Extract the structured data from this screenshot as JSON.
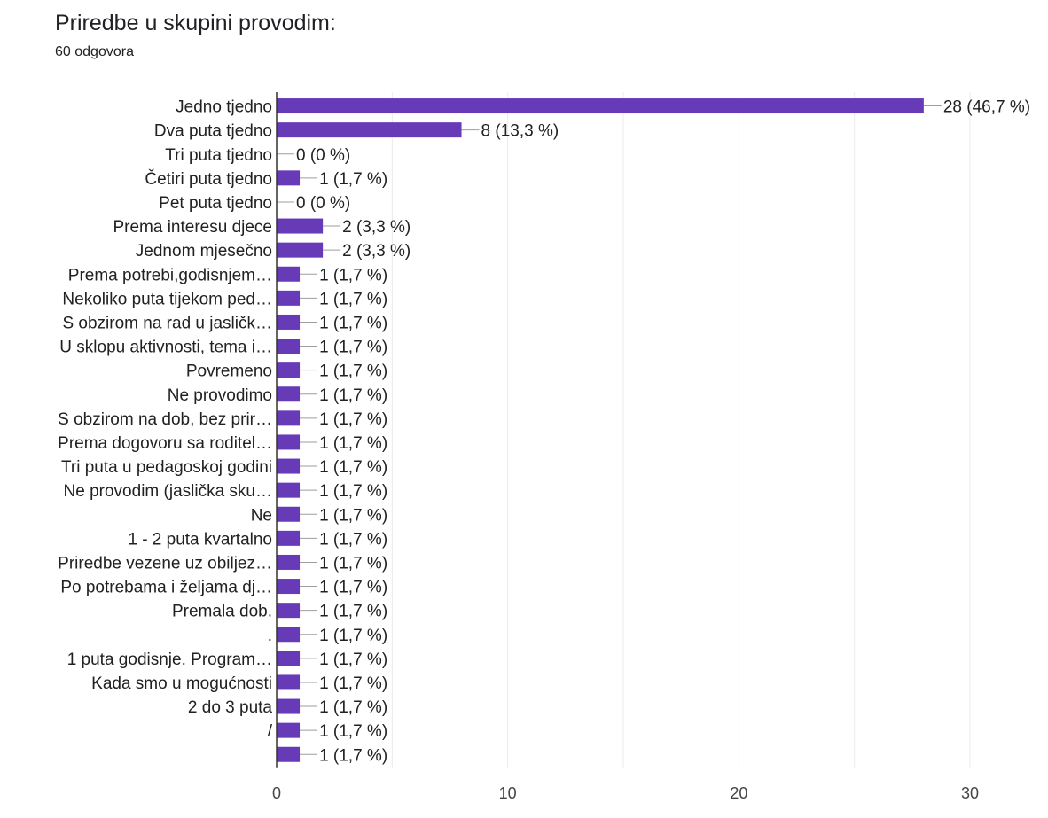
{
  "header": {
    "title": "Priredbe u skupini provodim:",
    "subtitle": "60 odgovora"
  },
  "chart_data": {
    "type": "bar",
    "orientation": "horizontal",
    "title": "Priredbe u skupini provodim:",
    "xlim": [
      0,
      30
    ],
    "xticks": [
      0,
      10,
      20,
      30
    ],
    "grid": true,
    "bar_color": "#673ab7",
    "categories": [
      "Jedno tjedno",
      "Dva puta tjedno",
      "Tri puta tjedno",
      "Četiri puta tjedno",
      "Pet puta tjedno",
      "Prema interesu djece",
      "Jednom mjesečno",
      "Prema potrebi,godisnjem…",
      "Nekoliko puta tijekom ped…",
      "S obzirom na rad u jasličk…",
      "U sklopu aktivnosti, tema i…",
      "Povremeno",
      "Ne provodimo",
      "S obzirom na dob, bez prir…",
      "Prema dogovoru sa roditel…",
      "Tri puta u pedagoskoj godini",
      "Ne provodim (jaslička sku…",
      "Ne",
      "1 - 2 puta kvartalno",
      "Priredbe vezene uz obiljez…",
      "Po potrebama i željama dj…",
      "Premala dob.",
      ".",
      "1 puta godisnje. Program…",
      "Kada smo u mogućnosti",
      "2 do 3 puta",
      "/",
      ""
    ],
    "values": [
      28,
      8,
      0,
      1,
      0,
      2,
      2,
      1,
      1,
      1,
      1,
      1,
      1,
      1,
      1,
      1,
      1,
      1,
      1,
      1,
      1,
      1,
      1,
      1,
      1,
      1,
      1,
      1
    ],
    "data_labels": [
      "28 (46,7 %)",
      "8 (13,3 %)",
      "0 (0 %)",
      "1 (1,7 %)",
      "0 (0 %)",
      "2 (3,3 %)",
      "2 (3,3 %)",
      "1 (1,7 %)",
      "1 (1,7 %)",
      "1 (1,7 %)",
      "1 (1,7 %)",
      "1 (1,7 %)",
      "1 (1,7 %)",
      "1 (1,7 %)",
      "1 (1,7 %)",
      "1 (1,7 %)",
      "1 (1,7 %)",
      "1 (1,7 %)",
      "1 (1,7 %)",
      "1 (1,7 %)",
      "1 (1,7 %)",
      "1 (1,7 %)",
      "1 (1,7 %)",
      "1 (1,7 %)",
      "1 (1,7 %)",
      "1 (1,7 %)",
      "1 (1,7 %)",
      "1 (1,7 %)"
    ]
  }
}
